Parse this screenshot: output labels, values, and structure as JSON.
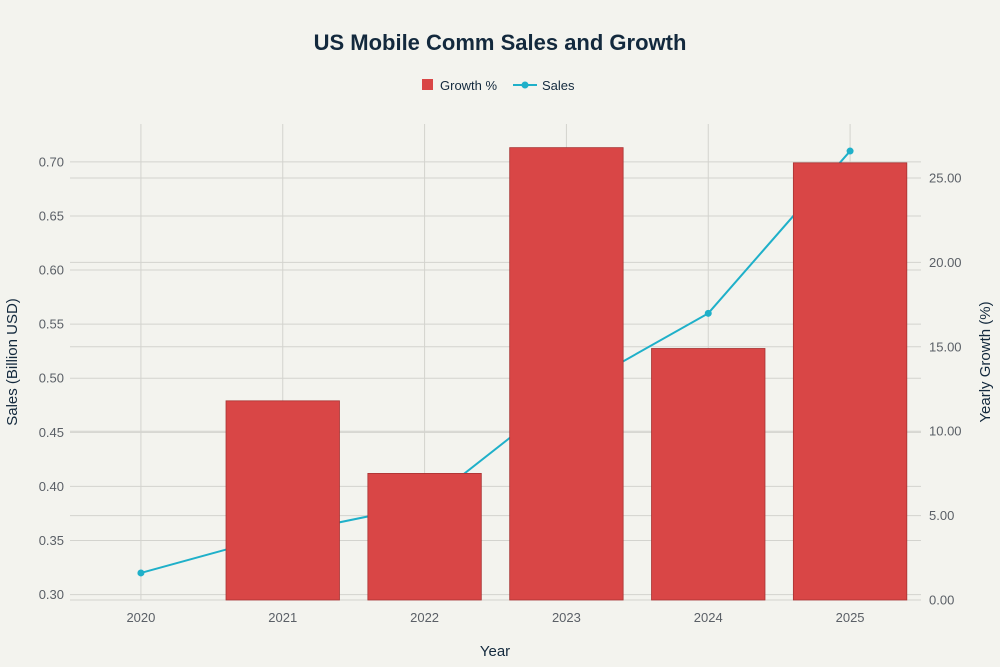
{
  "chart_data": {
    "type": "bar",
    "title": "US Mobile Comm Sales and Growth",
    "xlabel": "Year",
    "ylabel_left": "Sales (Billion USD)",
    "ylabel_right": "Yearly Growth (%)",
    "categories": [
      "2020",
      "2021",
      "2022",
      "2023",
      "2024",
      "2025"
    ],
    "series": [
      {
        "name": "Growth %",
        "type": "bar",
        "axis": "right",
        "color": "#d94646",
        "values": [
          0,
          11.8,
          7.5,
          26.8,
          14.9,
          25.9
        ]
      },
      {
        "name": "Sales",
        "type": "line",
        "axis": "left",
        "color": "#1fb0c9",
        "values": [
          0.32,
          0.356,
          0.383,
          0.486,
          0.56,
          0.71
        ]
      }
    ],
    "ylim_left": [
      0.295,
      0.735
    ],
    "ylim_right": [
      0,
      28.2
    ],
    "yticks_left": [
      "0.30",
      "0.35",
      "0.40",
      "0.45",
      "0.50",
      "0.55",
      "0.60",
      "0.65",
      "0.70"
    ],
    "yticks_right": [
      "0.00",
      "5.00",
      "10.00",
      "15.00",
      "20.00",
      "25.00"
    ],
    "legend_position": "top-center",
    "grid": true
  }
}
